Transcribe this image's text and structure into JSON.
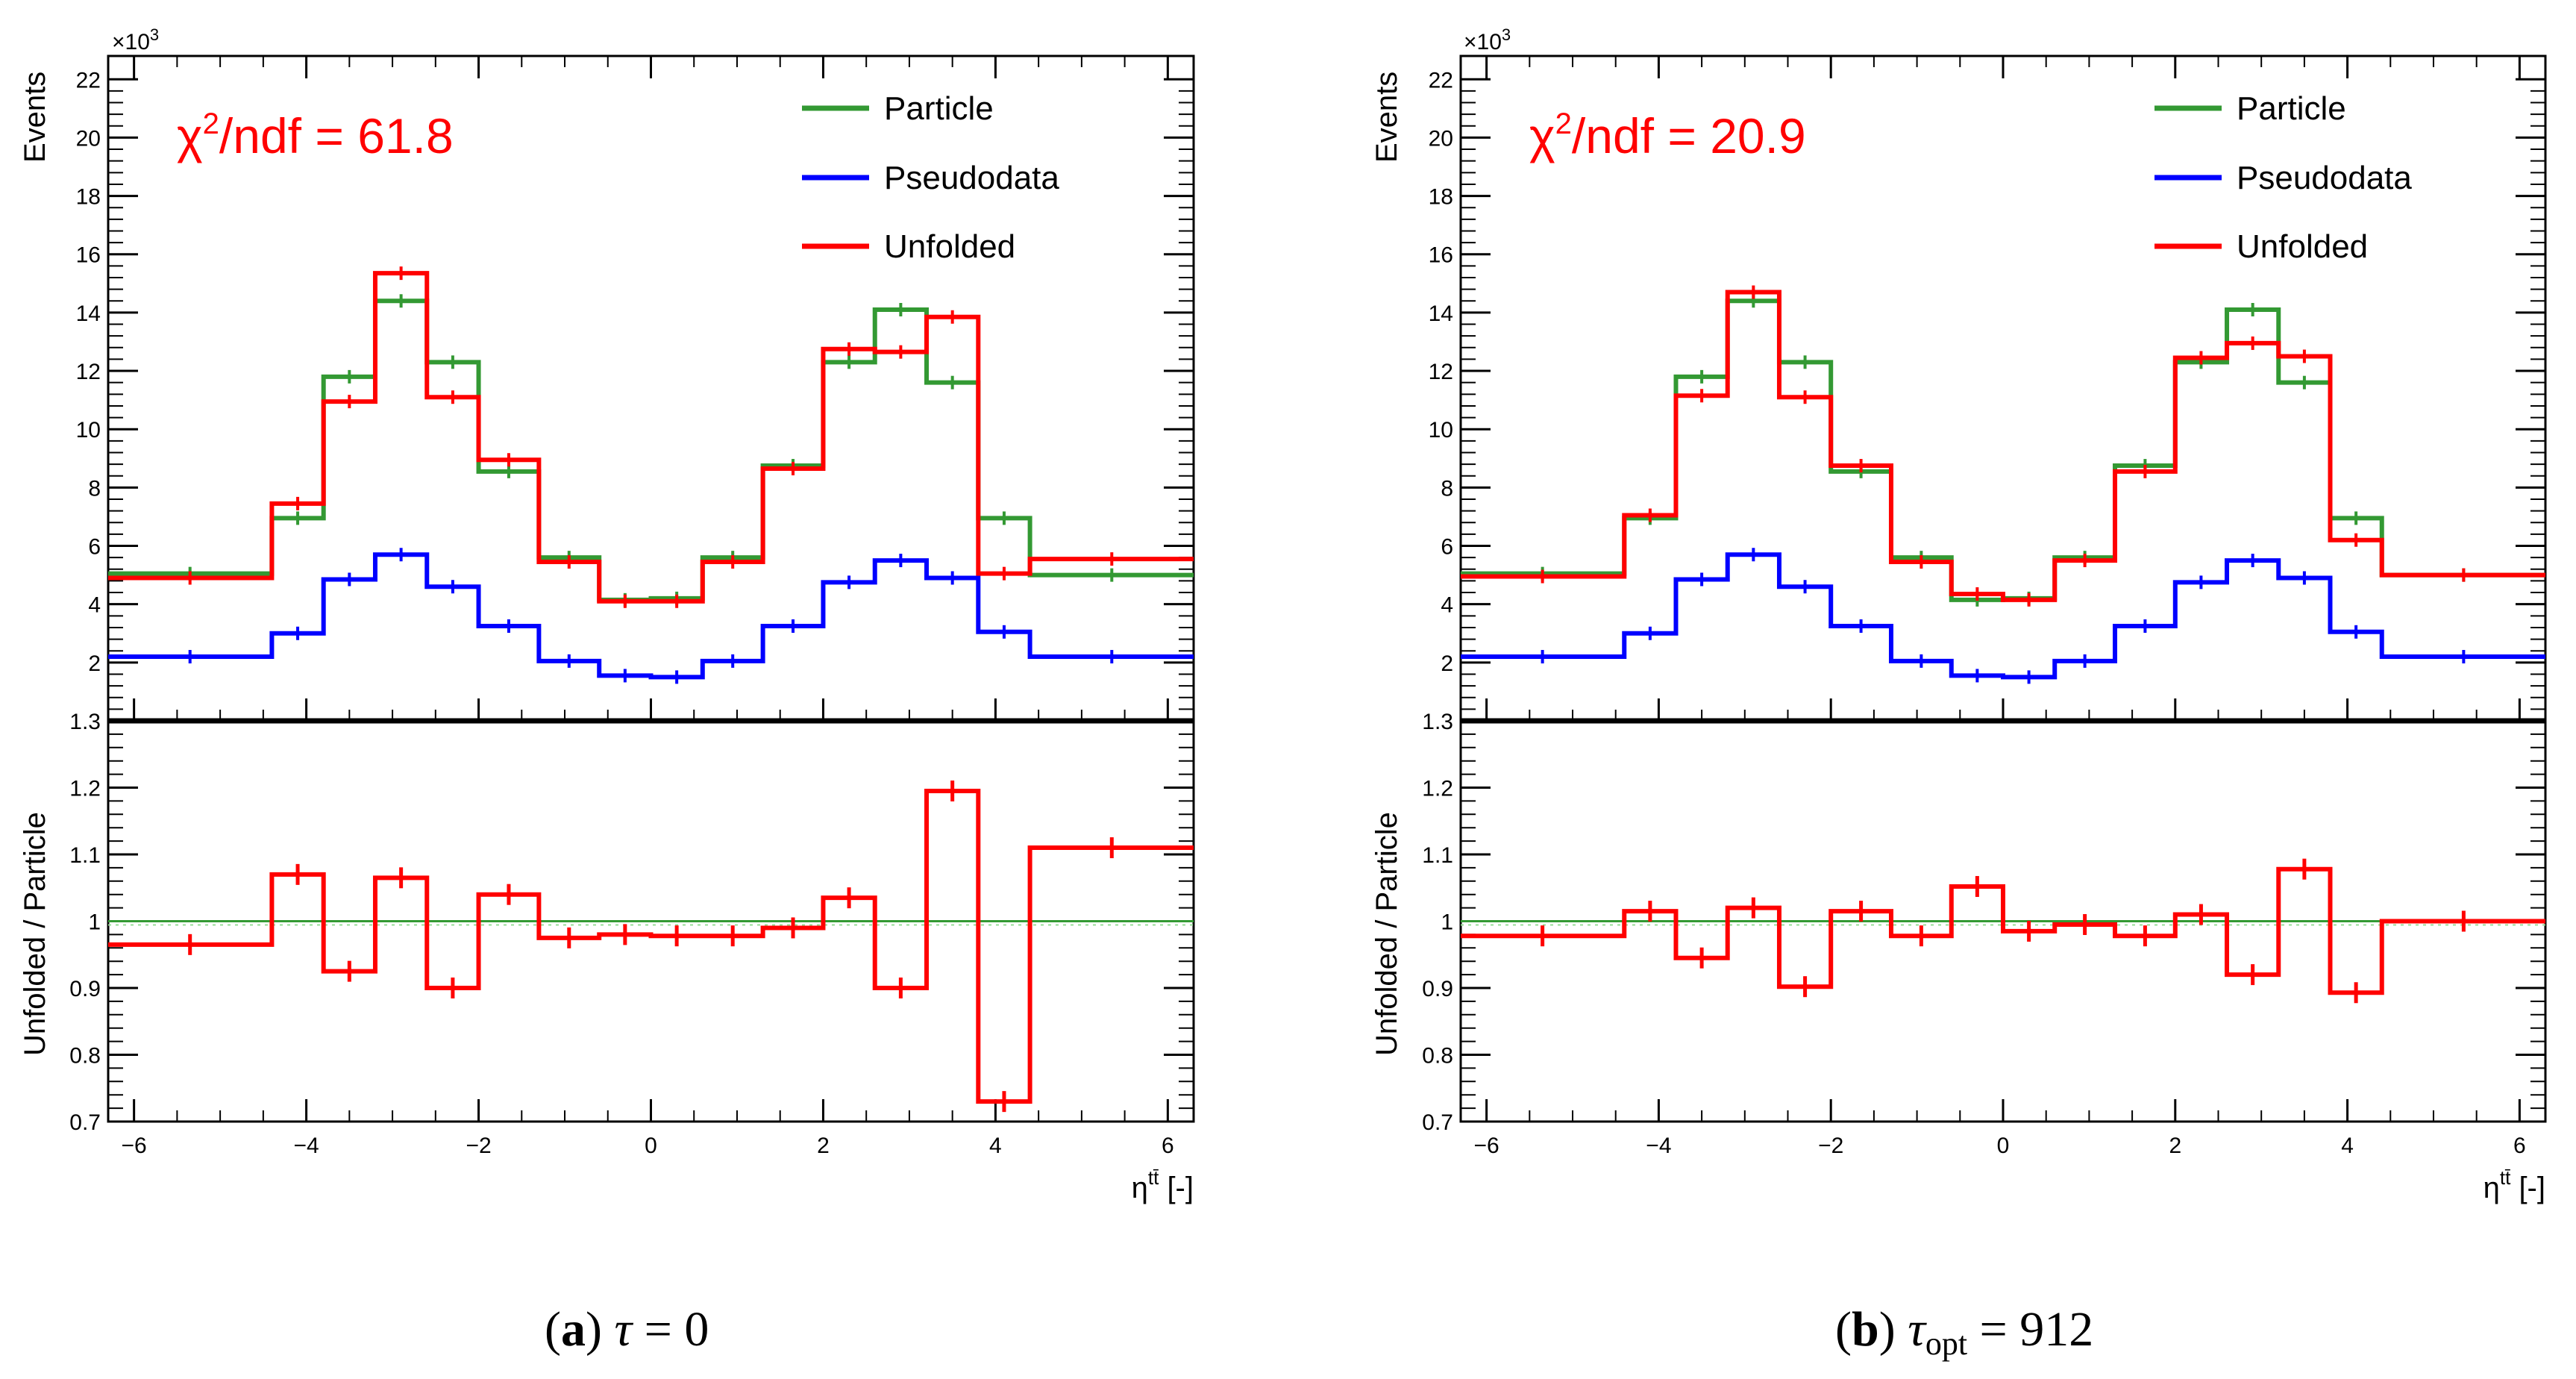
{
  "chart_data": [
    {
      "id": "a",
      "type": "histogram",
      "caption": {
        "letter": "a",
        "symbol": "τ",
        "subscript": "",
        "eq": " = 0"
      },
      "chi2_label": "/ndf = 61.8",
      "top": {
        "ylabel": "Events",
        "ylim": [
          0,
          22.8
        ],
        "exponent": "×10",
        "exp_power": "3",
        "yticks": [
          "2",
          "4",
          "6",
          "8",
          "10",
          "12",
          "14",
          "16",
          "18",
          "20",
          "22"
        ],
        "series": [
          {
            "name": "Particle",
            "color": "#339933",
            "values": [
              5.05,
              6.95,
              11.8,
              14.4,
              12.3,
              8.55,
              5.6,
              4.15,
              4.2,
              5.6,
              8.75,
              12.3,
              14.1,
              11.6,
              6.95,
              5.0
            ]
          },
          {
            "name": "Pseudodata",
            "color": "#0000ff",
            "values": [
              2.2,
              3.0,
              4.85,
              5.7,
              4.6,
              3.25,
              2.05,
              1.55,
              1.5,
              2.05,
              3.25,
              4.75,
              5.5,
              4.9,
              3.05,
              2.2
            ]
          },
          {
            "name": "Unfolded",
            "color": "#ff0000",
            "values": [
              4.9,
              7.45,
              10.95,
              15.35,
              11.1,
              8.95,
              5.45,
              4.1,
              4.1,
              5.45,
              8.65,
              12.75,
              12.65,
              13.85,
              5.05,
              5.55
            ]
          }
        ]
      },
      "ratio": {
        "ylabel": "Unfolded / Particle",
        "ylim": [
          0.7,
          1.3
        ],
        "yticks": [
          "0.7",
          "0.8",
          "0.9",
          "1",
          "1.1",
          "1.2",
          "1.3"
        ],
        "values": [
          0.965,
          1.07,
          0.925,
          1.065,
          0.9,
          1.04,
          0.975,
          0.98,
          0.978,
          0.978,
          0.99,
          1.035,
          0.9,
          1.195,
          0.73,
          1.11
        ]
      },
      "xaxis": {
        "edges": [
          -6.3,
          -4.4,
          -3.8,
          -3.2,
          -2.6,
          -2.0,
          -1.3,
          -0.6,
          0.0,
          0.6,
          1.3,
          2.0,
          2.6,
          3.2,
          3.8,
          4.4,
          6.3
        ],
        "xlim": [
          -6.3,
          6.3
        ],
        "ticks": [
          "−6",
          "−4",
          "−2",
          "0",
          "2",
          "4",
          "6"
        ],
        "label_main": "η",
        "label_sup": "tt̄",
        "label_unit": " [-]"
      }
    },
    {
      "id": "b",
      "type": "histogram",
      "caption": {
        "letter": "b",
        "symbol": "τ",
        "subscript": "opt",
        "eq": " = 912"
      },
      "chi2_label": "/ndf = 20.9",
      "top": {
        "ylabel": "Events",
        "ylim": [
          0,
          22.8
        ],
        "exponent": "×10",
        "exp_power": "3",
        "yticks": [
          "2",
          "4",
          "6",
          "8",
          "10",
          "12",
          "14",
          "16",
          "18",
          "20",
          "22"
        ],
        "series": [
          {
            "name": "Particle",
            "color": "#339933",
            "values": [
              5.05,
              6.95,
              11.8,
              14.4,
              12.3,
              8.55,
              5.6,
              4.15,
              4.2,
              5.6,
              8.75,
              12.3,
              14.1,
              11.6,
              6.95,
              5.0
            ]
          },
          {
            "name": "Pseudodata",
            "color": "#0000ff",
            "values": [
              2.2,
              3.0,
              4.85,
              5.7,
              4.6,
              3.25,
              2.05,
              1.55,
              1.5,
              2.05,
              3.25,
              4.75,
              5.5,
              4.9,
              3.05,
              2.2
            ]
          },
          {
            "name": "Unfolded",
            "color": "#ff0000",
            "values": [
              4.95,
              7.05,
              11.15,
              14.7,
              11.1,
              8.75,
              5.45,
              4.35,
              4.15,
              5.5,
              8.55,
              12.45,
              12.95,
              12.5,
              6.2,
              5.0
            ]
          }
        ]
      },
      "ratio": {
        "ylabel": "Unfolded / Particle",
        "ylim": [
          0.7,
          1.3
        ],
        "yticks": [
          "0.7",
          "0.8",
          "0.9",
          "1",
          "1.1",
          "1.2",
          "1.3"
        ],
        "values": [
          0.978,
          1.015,
          0.945,
          1.02,
          0.902,
          1.015,
          0.978,
          1.052,
          0.985,
          0.995,
          0.978,
          1.01,
          0.92,
          1.078,
          0.893,
          1.0
        ]
      },
      "xaxis": {
        "edges": [
          -6.3,
          -4.4,
          -3.8,
          -3.2,
          -2.6,
          -2.0,
          -1.3,
          -0.6,
          0.0,
          0.6,
          1.3,
          2.0,
          2.6,
          3.2,
          3.8,
          4.4,
          6.3
        ],
        "xlim": [
          -6.3,
          6.3
        ],
        "ticks": [
          "−6",
          "−4",
          "−2",
          "0",
          "2",
          "4",
          "6"
        ],
        "label_main": "η",
        "label_sup": "tt̄",
        "label_unit": " [-]"
      }
    }
  ]
}
